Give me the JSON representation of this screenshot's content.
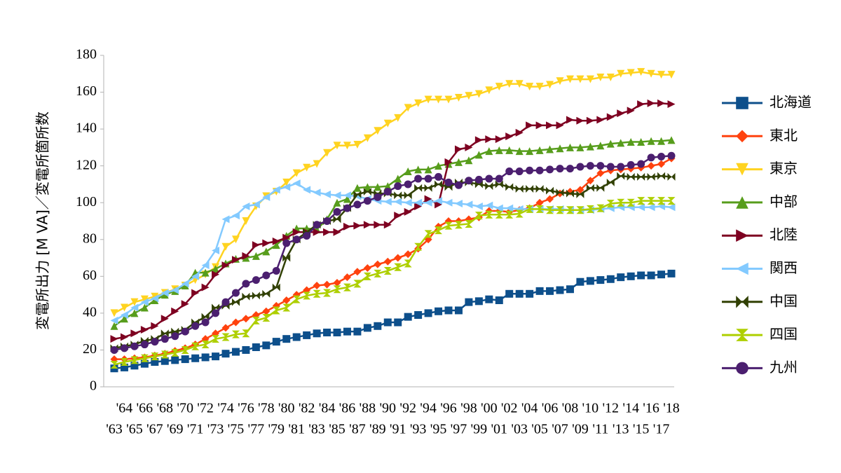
{
  "chart_data": {
    "type": "line",
    "y_label": "変電所出力 [M VA]／変電所箇所数",
    "categories": [
      "'63",
      "'64",
      "'65",
      "'66",
      "'67",
      "'68",
      "'69",
      "'70",
      "'71",
      "'72",
      "'73",
      "'74",
      "'75",
      "'76",
      "'77",
      "'78",
      "'79",
      "'80",
      "'81",
      "'82",
      "'83",
      "'84",
      "'85",
      "'86",
      "'87",
      "'88",
      "'89",
      "'90",
      "'91",
      "'92",
      "'93",
      "'94",
      "'95",
      "'96",
      "'97",
      "'98",
      "'99",
      "'00",
      "'01",
      "'02",
      "'03",
      "'04",
      "'05",
      "'06",
      "'07",
      "'08",
      "'09",
      "'10",
      "'11",
      "'12",
      "'13",
      "'14",
      "'15",
      "'16",
      "'17",
      "'18"
    ],
    "ylim": [
      0,
      180
    ],
    "yticks": [
      0,
      20,
      40,
      60,
      80,
      100,
      120,
      140,
      160,
      180
    ],
    "grid": false,
    "legend": "right",
    "series": [
      {
        "name": "北海道",
        "color": "#0d4f8b",
        "marker": "square",
        "values": [
          10,
          10.5,
          11.5,
          12.5,
          13.5,
          14,
          14.5,
          15,
          15.5,
          16,
          16.5,
          18,
          19,
          20,
          21.5,
          22.5,
          24.5,
          26,
          27,
          28,
          29,
          29.5,
          29.5,
          30,
          30,
          32,
          33,
          35,
          35,
          38,
          39,
          40,
          41,
          41.5,
          41.5,
          46,
          46.5,
          47.5,
          47,
          50.5,
          50.5,
          50.5,
          52,
          52,
          52.5,
          53,
          57,
          57.5,
          58,
          58.5,
          59.5,
          60,
          60.5,
          60.5,
          61,
          61.5
        ]
      },
      {
        "name": "東北",
        "color": "#ff420e",
        "marker": "diamond",
        "values": [
          15,
          15,
          15.5,
          16,
          17,
          18,
          19.5,
          21,
          23,
          26,
          29,
          32,
          35,
          37,
          39,
          41,
          44,
          47,
          50,
          52.5,
          55,
          55.5,
          56.5,
          59.5,
          62.5,
          64.5,
          66.5,
          68,
          70,
          72,
          75,
          80,
          87,
          90,
          90,
          91,
          92,
          95.5,
          95.5,
          95,
          96,
          97,
          100,
          102,
          105,
          106,
          107,
          112,
          116,
          117.5,
          118,
          118.5,
          119,
          120,
          121,
          124
        ]
      },
      {
        "name": "東京",
        "color": "#ffd320",
        "marker": "tri-down",
        "values": [
          40,
          43,
          46,
          47.5,
          49,
          51,
          53,
          55,
          58,
          61,
          65,
          76,
          80,
          90,
          98,
          103.5,
          106,
          111,
          116,
          119,
          121,
          127,
          131,
          131,
          131.5,
          135,
          139,
          143,
          146,
          151.5,
          154,
          156,
          156,
          156,
          157,
          158,
          159,
          161,
          163,
          164.5,
          164.5,
          163,
          163,
          164,
          166,
          167,
          167,
          167,
          168,
          168,
          170,
          170.5,
          171,
          170,
          169.5,
          169.5
        ]
      },
      {
        "name": "中部",
        "color": "#579d1c",
        "marker": "tri-up",
        "values": [
          33,
          37,
          40,
          43,
          47,
          50,
          52,
          55,
          62,
          62,
          64,
          67,
          69.5,
          70,
          71,
          73.5,
          77,
          82,
          86,
          86,
          85.5,
          91,
          100,
          102,
          108,
          108.5,
          108.5,
          109,
          113,
          117,
          118,
          118,
          120,
          121,
          122,
          123,
          126,
          128,
          128.5,
          128.5,
          128,
          128,
          128.5,
          129,
          129.5,
          130,
          130,
          130.5,
          131,
          132,
          132.5,
          133,
          133,
          133.5,
          133.5,
          134
        ]
      },
      {
        "name": "北陸",
        "color": "#7e0021",
        "marker": "tri-right",
        "values": [
          26,
          27,
          29,
          31,
          33,
          37,
          41,
          45,
          51,
          54,
          61,
          66,
          69,
          71,
          77,
          78,
          79,
          81,
          84,
          84,
          84,
          84,
          84,
          87,
          87.5,
          88,
          88,
          88,
          93,
          95,
          98,
          102,
          99,
          122,
          129,
          130,
          134,
          134.5,
          134.5,
          136,
          138,
          142,
          142,
          142,
          142,
          145,
          144.5,
          144.5,
          145,
          146.5,
          148.5,
          150,
          153.5,
          154,
          154,
          153.5
        ]
      },
      {
        "name": "関西",
        "color": "#83caff",
        "marker": "tri-left",
        "values": [
          36,
          39,
          43,
          46,
          48,
          51,
          52.5,
          56,
          60,
          66,
          74,
          91,
          93,
          98,
          99,
          103,
          107,
          108.5,
          110.5,
          107,
          105.5,
          104.5,
          104,
          104,
          103.5,
          102,
          101,
          100.5,
          100.5,
          100,
          100,
          100,
          101,
          100,
          99.5,
          99,
          98,
          98.5,
          97,
          97,
          96.5,
          96.5,
          96.5,
          96.5,
          96.5,
          96,
          96,
          96,
          96.5,
          97,
          97.5,
          97.5,
          97.5,
          97.5,
          98,
          97.5
        ]
      },
      {
        "name": "中国",
        "color": "#314004",
        "marker": "bowtie",
        "values": [
          21,
          22,
          23,
          25,
          26,
          29,
          30,
          31,
          35,
          38,
          43,
          44,
          46,
          49,
          49.5,
          50.5,
          54,
          70,
          80,
          84,
          88,
          90,
          91,
          97,
          104.5,
          106,
          105,
          105,
          104,
          104,
          108,
          108,
          110,
          108.5,
          111,
          111,
          110,
          109,
          110,
          108.5,
          107.5,
          107.5,
          107.5,
          106.5,
          105.5,
          105,
          104.5,
          108,
          108,
          111,
          114.5,
          114,
          114,
          114,
          114.5,
          114
        ]
      },
      {
        "name": "四国",
        "color": "#aecf00",
        "marker": "hourglass",
        "values": [
          12,
          13.5,
          14.5,
          15.5,
          16.5,
          17.5,
          18.5,
          20,
          22,
          23,
          26,
          27,
          28.5,
          29,
          36,
          37.5,
          41.5,
          43,
          47.5,
          49.5,
          50.5,
          51,
          53,
          54,
          56,
          60,
          61.5,
          63,
          65,
          67,
          76,
          83,
          85,
          87.5,
          88,
          88.5,
          93,
          93.5,
          93.5,
          93.5,
          94,
          96.5,
          96.5,
          96,
          96,
          96,
          96,
          96.5,
          97,
          99.5,
          100,
          100,
          101,
          101,
          101,
          101
        ]
      },
      {
        "name": "九州",
        "color": "#4b1f6f",
        "marker": "circle",
        "values": [
          20,
          21,
          22,
          23,
          24.5,
          26,
          27.5,
          30,
          33,
          35,
          40,
          46,
          51,
          56,
          58,
          60.5,
          63,
          78,
          80,
          82,
          88,
          90,
          95,
          97,
          99,
          101,
          103,
          106,
          109,
          110,
          113,
          113,
          114,
          111,
          109.5,
          112,
          112.5,
          113,
          113,
          117,
          117,
          117.5,
          117.5,
          118,
          118.5,
          118.5,
          119.5,
          120,
          120,
          119.5,
          119.5,
          120.5,
          121,
          124.5,
          125,
          125.5
        ]
      }
    ]
  }
}
